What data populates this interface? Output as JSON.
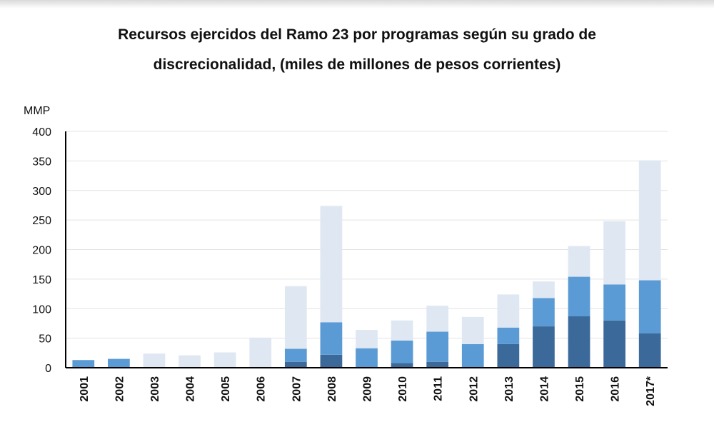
{
  "title_line1": "Recursos ejercidos del Ramo 23 por programas según su grado de",
  "title_line2": "discrecionalidad, (miles de millones de pesos corrientes)",
  "colors": {
    "dark": "#3b6a9a",
    "medium": "#5b9bd5",
    "light": "#dfe8f2",
    "axis": "#000000",
    "grid": "#e3e3e3"
  },
  "chart_data": {
    "type": "bar",
    "stacked": true,
    "title": "Recursos ejercidos del Ramo 23 por programas según su grado de discrecionalidad, (miles de millones de pesos corrientes)",
    "ylabel": "MMP",
    "xlabel": "",
    "ylim": [
      0,
      400
    ],
    "yticks": [
      0,
      50,
      100,
      150,
      200,
      250,
      300,
      350,
      400
    ],
    "grid": true,
    "legend": "none",
    "categories": [
      "2001",
      "2002",
      "2003",
      "2004",
      "2005",
      "2006",
      "2007",
      "2008",
      "2009",
      "2010",
      "2011",
      "2012",
      "2013",
      "2014",
      "2015",
      "2016",
      "2017*"
    ],
    "series": [
      {
        "color": "#3b6a9a",
        "values": [
          0,
          0,
          0,
          0,
          0,
          0,
          10,
          22,
          0,
          8,
          10,
          0,
          40,
          70,
          87,
          80,
          58
        ]
      },
      {
        "color": "#5b9bd5",
        "values": [
          13,
          15,
          0,
          0,
          0,
          0,
          22,
          55,
          33,
          38,
          51,
          40,
          28,
          48,
          67,
          61,
          90
        ]
      },
      {
        "color": "#dfe8f2",
        "values": [
          0,
          0,
          24,
          21,
          26,
          51,
          106,
          197,
          31,
          34,
          44,
          46,
          56,
          28,
          52,
          107,
          203
        ]
      }
    ]
  }
}
